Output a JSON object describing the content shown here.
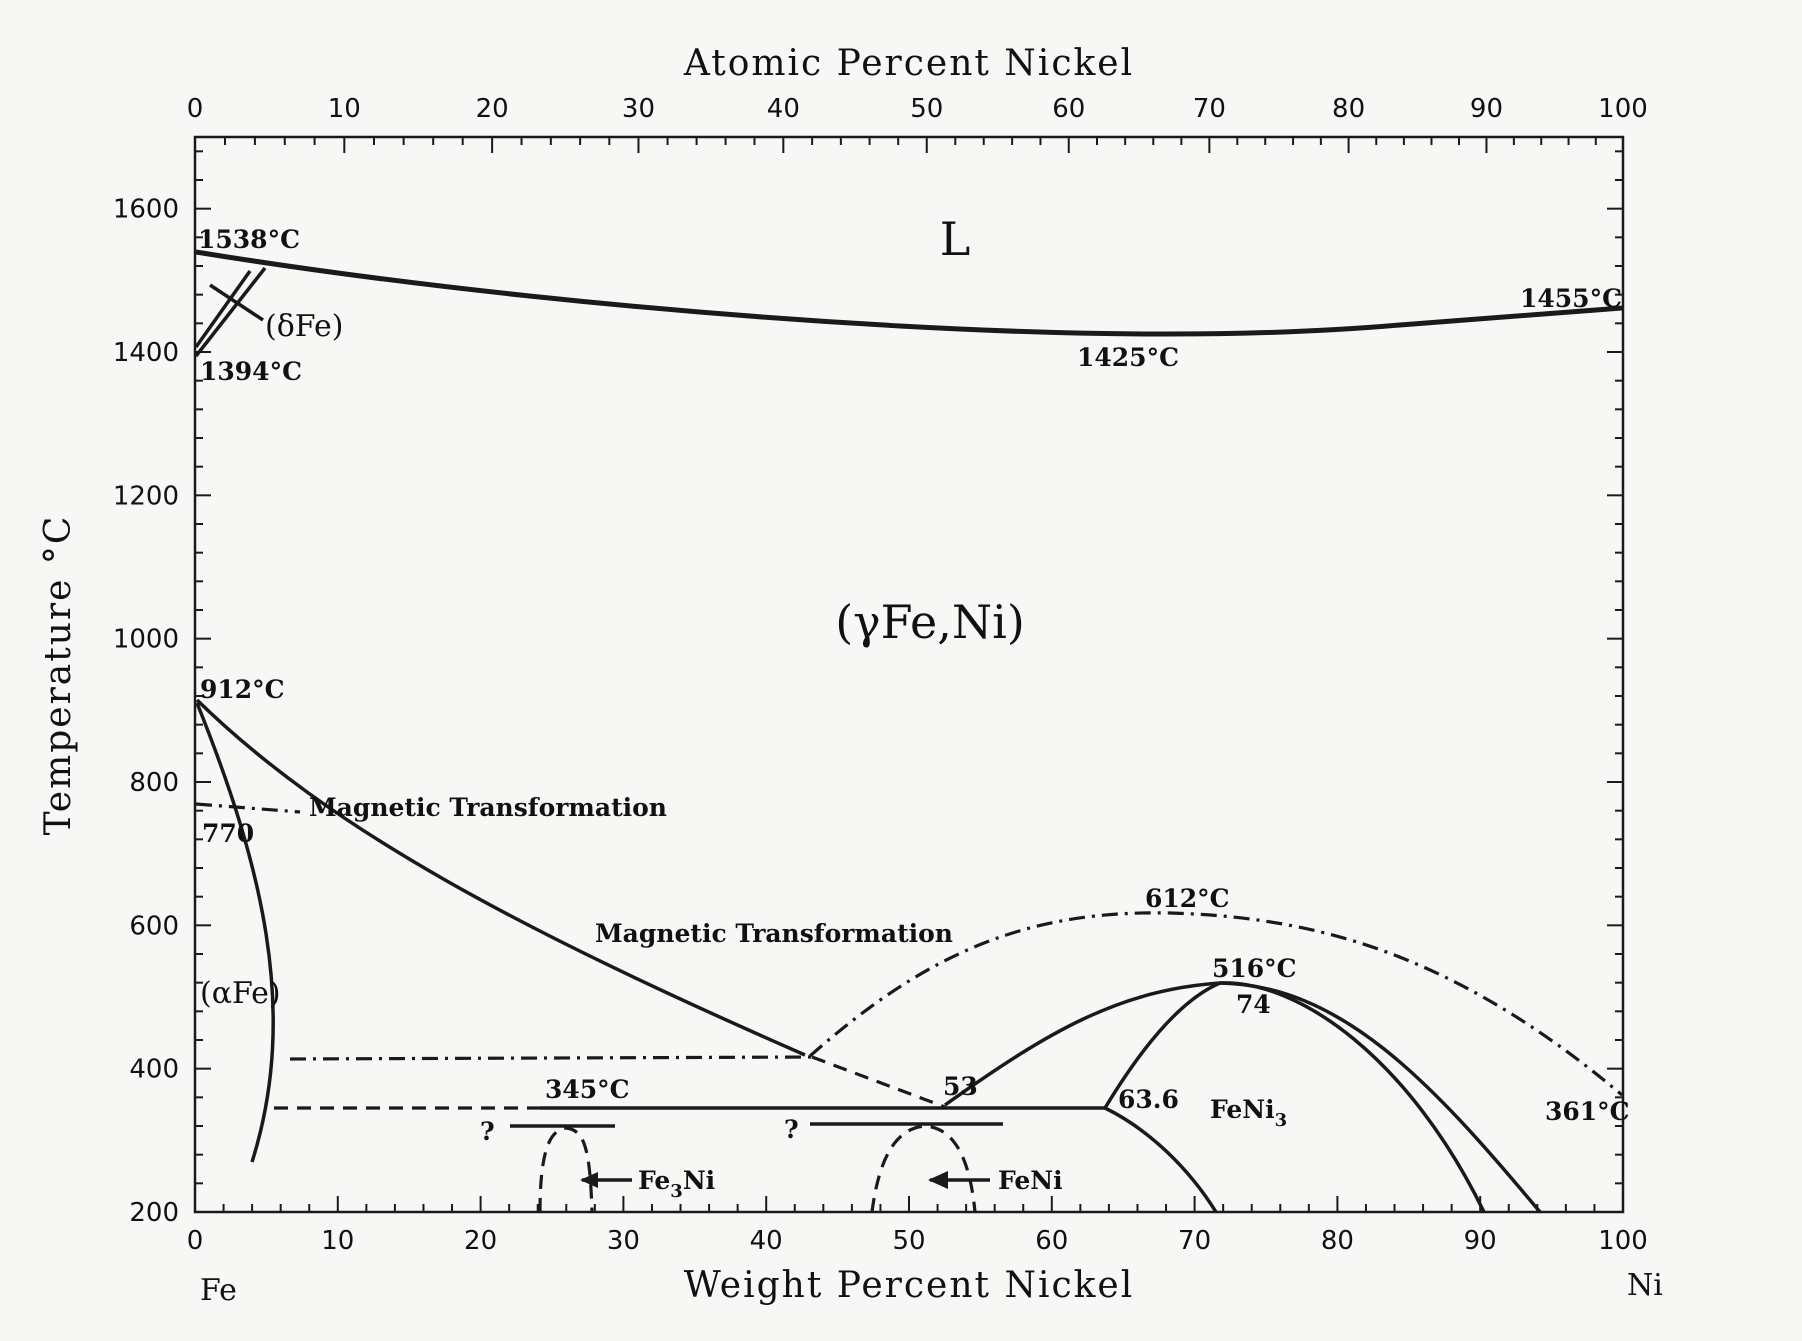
{
  "titles": {
    "top": "Atomic Percent Nickel",
    "bottom": "Weight Percent Nickel",
    "left": "Temperature °C"
  },
  "axes": {
    "wt_ticks": [
      "0",
      "10",
      "20",
      "30",
      "40",
      "50",
      "60",
      "70",
      "80",
      "90",
      "100"
    ],
    "at_ticks": [
      "0",
      "10",
      "20",
      "30",
      "40",
      "50",
      "60",
      "70",
      "80",
      "90",
      "100"
    ],
    "t_ticks": [
      "200",
      "400",
      "600",
      "800",
      "1000",
      "1200",
      "1400",
      "1600"
    ],
    "left_end": "Fe",
    "right_end": "Ni"
  },
  "phases": {
    "liquid": "L",
    "gamma": "(γFe,Ni)",
    "delta": "(δFe)",
    "alpha": "(αFe)",
    "fe3ni": "Fe",
    "fe3ni_sub": "3",
    "fe3ni_suffix": "Ni",
    "feni": "FeNi",
    "feni3": "FeNi",
    "feni3_sub": "3"
  },
  "labels": {
    "t1538": "1538°C",
    "t1394": "1394°C",
    "t1455": "1455°C",
    "t1425": "1425°C",
    "t912": "912°C",
    "t770": "770",
    "t612": "612°C",
    "t516": "516°C",
    "c74": "74",
    "c53": "53",
    "c636": "63.6",
    "t345": "345°C",
    "t361": "361°C",
    "q1": "?",
    "q2": "?",
    "mag1": "Magnetic Transformation",
    "mag2": "Magnetic Transformation"
  },
  "chart_data": {
    "type": "phase-diagram",
    "x": "weight percent Ni",
    "y": "temperature °C",
    "xlim": [
      0,
      100
    ],
    "ylim": [
      200,
      1700
    ],
    "points": {
      "Fe_melting": [
        0,
        1538
      ],
      "delta_gamma_Fe": [
        0,
        1394
      ],
      "Ni_melting": [
        100,
        1455
      ],
      "congruent_min": [
        63,
        1425
      ],
      "gamma_alpha_Fe": [
        0,
        912
      ],
      "Fe_curie": [
        0,
        770
      ],
      "max_curie": [
        68,
        612
      ],
      "FeNi3_congruent": [
        74,
        516
      ],
      "eutectoid": [
        53,
        345
      ],
      "FeNi3_boundary": [
        63.6,
        345
      ],
      "Ni_curie": [
        100,
        361
      ]
    }
  }
}
